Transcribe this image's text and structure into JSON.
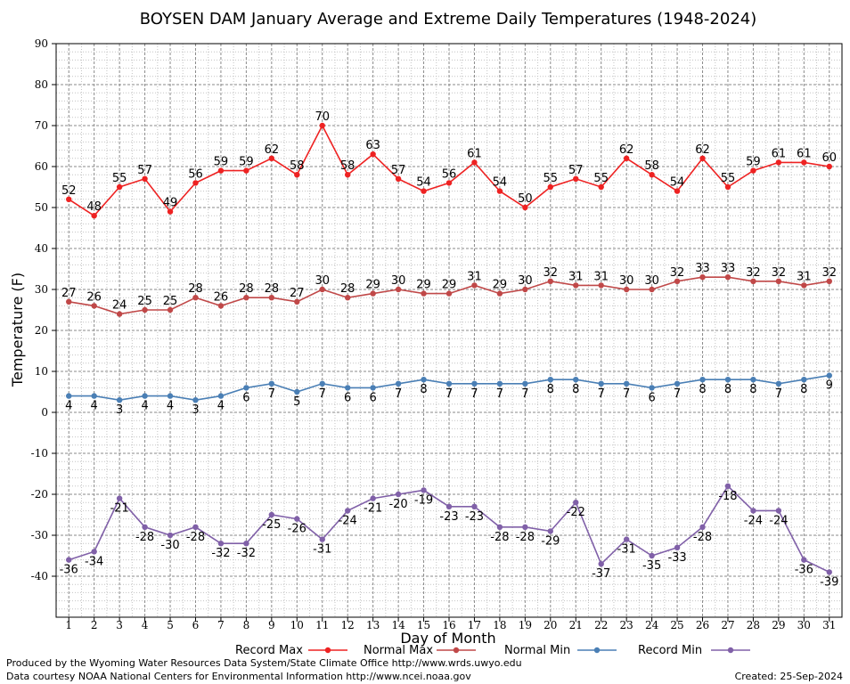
{
  "chart_data": {
    "type": "line",
    "title": "BOYSEN DAM January Average and Extreme Daily Temperatures (1948-2024)",
    "xlabel": "Day of Month",
    "ylabel": "Temperature (F)",
    "ylim": [
      -50,
      90
    ],
    "yticks": [
      90,
      80,
      70,
      60,
      50,
      40,
      30,
      20,
      10,
      0,
      -10,
      -20,
      -30,
      -40
    ],
    "grid": true,
    "legend_position": "bottom",
    "categories": [
      1,
      2,
      3,
      4,
      5,
      6,
      7,
      8,
      9,
      10,
      11,
      12,
      13,
      14,
      15,
      16,
      17,
      18,
      19,
      20,
      21,
      22,
      23,
      24,
      25,
      26,
      27,
      28,
      29,
      30,
      31
    ],
    "series": [
      {
        "name": "Record Max",
        "color": "#ee2222",
        "label_position": "above",
        "values": [
          52,
          48,
          55,
          57,
          49,
          56,
          59,
          59,
          62,
          58,
          70,
          58,
          63,
          57,
          54,
          56,
          61,
          54,
          50,
          55,
          57,
          55,
          62,
          58,
          54,
          62,
          55,
          59,
          61,
          61,
          60
        ]
      },
      {
        "name": "Normal Max",
        "color": "#c04848",
        "label_position": "above",
        "values": [
          27,
          26,
          24,
          25,
          25,
          28,
          26,
          28,
          28,
          27,
          30,
          28,
          29,
          30,
          29,
          29,
          31,
          29,
          30,
          32,
          31,
          31,
          30,
          30,
          32,
          33,
          33,
          32,
          32,
          31,
          32
        ]
      },
      {
        "name": "Normal Min",
        "color": "#4a7fb5",
        "label_position": "below",
        "values": [
          4,
          4,
          3,
          4,
          4,
          3,
          4,
          6,
          7,
          5,
          7,
          6,
          6,
          7,
          8,
          7,
          7,
          7,
          7,
          8,
          8,
          7,
          7,
          6,
          7,
          8,
          8,
          8,
          7,
          8,
          9
        ]
      },
      {
        "name": "Record Min",
        "color": "#8060a8",
        "label_position": "below",
        "values": [
          -36,
          -34,
          -21,
          -28,
          -30,
          -28,
          -32,
          -32,
          -25,
          -26,
          -31,
          -24,
          -21,
          -20,
          -19,
          -23,
          -23,
          -28,
          -28,
          -29,
          -22,
          -37,
          -31,
          -35,
          -33,
          -28,
          -18,
          -24,
          -24,
          -36,
          -39
        ]
      }
    ]
  },
  "footer": {
    "produced_by": "Produced by the Wyoming Water Resources Data System/State Climate Office http://www.wrds.uwyo.edu",
    "courtesy": "Data courtesy NOAA National Centers for Environmental Information http://www.ncei.noaa.gov",
    "created": "Created:  25-Sep-2024"
  }
}
